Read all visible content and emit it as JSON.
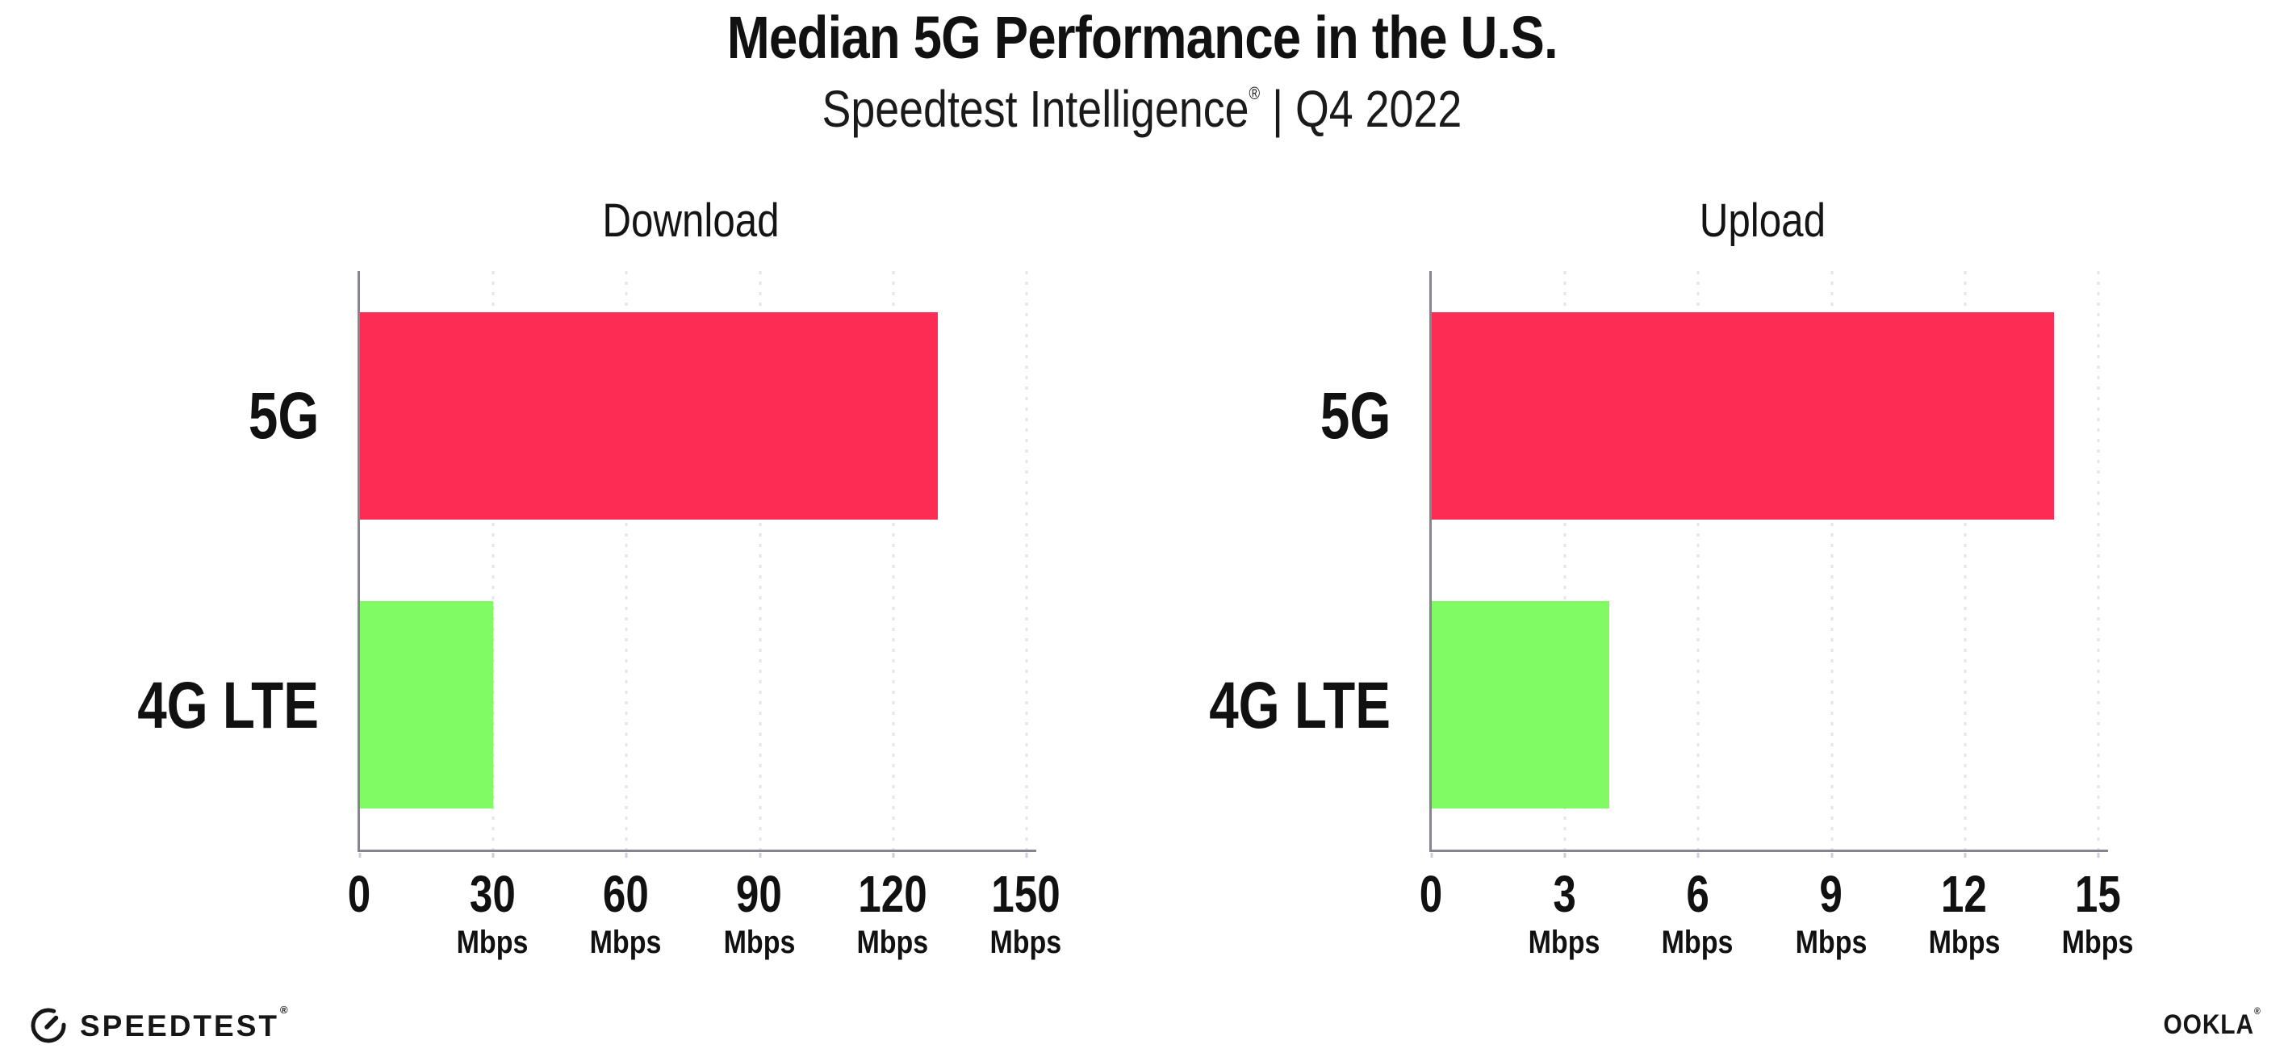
{
  "title": "Median 5G Performance in the U.S.",
  "subtitle": {
    "brand": "Speedtest Intelligence",
    "mark": "®",
    "rest": " | Q4 2022"
  },
  "chart_data": [
    {
      "type": "bar",
      "orientation": "horizontal",
      "title": "Download",
      "categories": [
        "5G",
        "4G LTE"
      ],
      "values": [
        130,
        30
      ],
      "unit": "Mbps",
      "xlim": [
        0,
        150
      ],
      "xticks": [
        0,
        30,
        60,
        90,
        120,
        150
      ],
      "bar_colors": [
        "#FC2C55",
        "#80FB63"
      ],
      "grid": "dotted-vertical",
      "legend": "none"
    },
    {
      "type": "bar",
      "orientation": "horizontal",
      "title": "Upload",
      "categories": [
        "5G",
        "4G LTE"
      ],
      "values": [
        14,
        4
      ],
      "unit": "Mbps",
      "xlim": [
        0,
        15
      ],
      "xticks": [
        0,
        3,
        6,
        9,
        12,
        15
      ],
      "bar_colors": [
        "#FC2C55",
        "#80FB63"
      ],
      "grid": "dotted-vertical",
      "legend": "none"
    }
  ],
  "colors": {
    "bar_5g": "#FC2C55",
    "bar_4g_lte": "#80FB63",
    "gridline": "#E3E3EF",
    "axis": "#85858F",
    "text": "#111111"
  },
  "footer": {
    "speedtest_label": "SPEEDTEST",
    "speedtest_mark": "®",
    "ookla_label": "OOKLA",
    "ookla_mark": "®"
  }
}
